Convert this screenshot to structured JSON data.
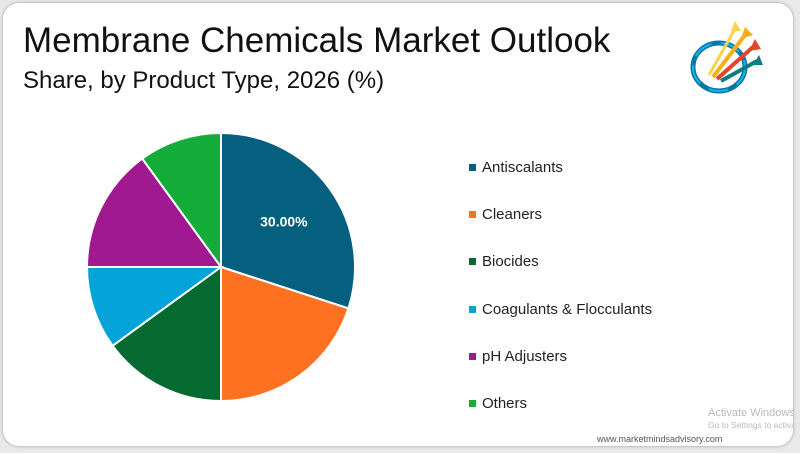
{
  "chart_data": {
    "type": "pie",
    "title": "Membrane Chemicals Market Outlook",
    "subtitle": "Share, by Product Type, 2026 (%)",
    "categories": [
      "Antiscalants",
      "Cleaners",
      "Biocides",
      "Coagulants & Flocculants",
      "pH Adjusters",
      "Others"
    ],
    "values": [
      30,
      20,
      15,
      10,
      15,
      10
    ],
    "colors": [
      "#05607f",
      "#fd7120",
      "#046a2f",
      "#04a3d9",
      "#a01990",
      "#14ad3a"
    ],
    "data_labels": [
      "30.00%",
      "",
      "",
      "",
      "",
      ""
    ],
    "legend_position": "right"
  },
  "footer": {
    "website": "www.marketmindsadvisory.com",
    "watermark_line1": "Activate Windows",
    "watermark_line2": "Go to Settings to activate Windows."
  }
}
